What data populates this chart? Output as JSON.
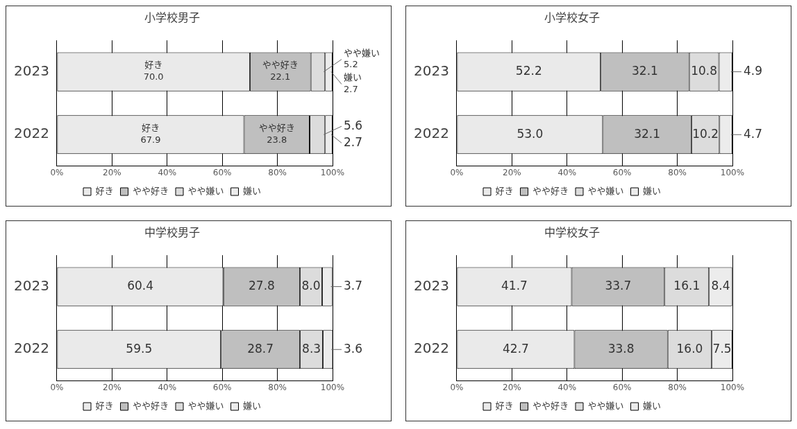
{
  "chart_data": [
    {
      "type": "bar",
      "title": "小学校男子",
      "orientation": "horizontal",
      "stacked": true,
      "categories": [
        "2023",
        "2022"
      ],
      "xlim": [
        0,
        100
      ],
      "xticks": [
        {
          "value": 0,
          "label": "0%"
        },
        {
          "value": 20,
          "label": "20%"
        },
        {
          "value": 40,
          "label": "40%"
        },
        {
          "value": 60,
          "label": "60%"
        },
        {
          "value": 80,
          "label": "80%"
        },
        {
          "value": 100,
          "label": "100%"
        }
      ],
      "grid": "x",
      "legend": "bottom",
      "series": [
        {
          "name": "好き",
          "color": "#eaeaea",
          "values": [
            70.0,
            67.9
          ],
          "value_labels": [
            "好き\n70.0",
            "好き\n67.9"
          ]
        },
        {
          "name": "やや好き",
          "color": "#bfbfbf",
          "values": [
            22.1,
            23.8
          ],
          "value_labels": [
            "やや好き\n22.1",
            "やや好き\n23.8"
          ]
        },
        {
          "name": "やや嫌い",
          "color": "#dcdcdc",
          "values": [
            5.2,
            5.6
          ],
          "value_labels": [
            "やや嫌い\n5.2",
            "5.6"
          ]
        },
        {
          "name": "嫌い",
          "color": "#ececec",
          "values": [
            2.7,
            2.7
          ],
          "value_labels": [
            "嫌い\n2.7",
            "2.7"
          ]
        }
      ]
    },
    {
      "type": "bar",
      "title": "小学校女子",
      "orientation": "horizontal",
      "stacked": true,
      "categories": [
        "2023",
        "2022"
      ],
      "xlim": [
        0,
        100
      ],
      "xticks": [
        {
          "value": 0,
          "label": "0%"
        },
        {
          "value": 20,
          "label": "20%"
        },
        {
          "value": 40,
          "label": "40%"
        },
        {
          "value": 60,
          "label": "60%"
        },
        {
          "value": 80,
          "label": "80%"
        },
        {
          "value": 100,
          "label": "100%"
        }
      ],
      "grid": "x",
      "legend": "bottom",
      "series": [
        {
          "name": "好き",
          "color": "#eaeaea",
          "values": [
            52.2,
            53.0
          ],
          "value_labels": [
            "52.2",
            "53.0"
          ]
        },
        {
          "name": "やや好き",
          "color": "#bfbfbf",
          "values": [
            32.1,
            32.1
          ],
          "value_labels": [
            "32.1",
            "32.1"
          ]
        },
        {
          "name": "やや嫌い",
          "color": "#dcdcdc",
          "values": [
            10.8,
            10.2
          ],
          "value_labels": [
            "10.8",
            "10.2"
          ]
        },
        {
          "name": "嫌い",
          "color": "#ececec",
          "values": [
            4.9,
            4.7
          ],
          "value_labels": [
            "4.9",
            "4.7"
          ]
        }
      ]
    },
    {
      "type": "bar",
      "title": "中学校男子",
      "orientation": "horizontal",
      "stacked": true,
      "categories": [
        "2023",
        "2022"
      ],
      "xlim": [
        0,
        100
      ],
      "xticks": [
        {
          "value": 0,
          "label": "0%"
        },
        {
          "value": 20,
          "label": "20%"
        },
        {
          "value": 40,
          "label": "40%"
        },
        {
          "value": 60,
          "label": "60%"
        },
        {
          "value": 80,
          "label": "80%"
        },
        {
          "value": 100,
          "label": "100%"
        }
      ],
      "grid": "x",
      "legend": "bottom",
      "series": [
        {
          "name": "好き",
          "color": "#eaeaea",
          "values": [
            60.4,
            59.5
          ],
          "value_labels": [
            "60.4",
            "59.5"
          ]
        },
        {
          "name": "やや好き",
          "color": "#bfbfbf",
          "values": [
            27.8,
            28.7
          ],
          "value_labels": [
            "27.8",
            "28.7"
          ]
        },
        {
          "name": "やや嫌い",
          "color": "#dcdcdc",
          "values": [
            8.0,
            8.3
          ],
          "value_labels": [
            "8.0",
            "8.3"
          ]
        },
        {
          "name": "嫌い",
          "color": "#ececec",
          "values": [
            3.7,
            3.6
          ],
          "value_labels": [
            "3.7",
            "3.6"
          ]
        }
      ]
    },
    {
      "type": "bar",
      "title": "中学校女子",
      "orientation": "horizontal",
      "stacked": true,
      "categories": [
        "2023",
        "2022"
      ],
      "xlim": [
        0,
        100
      ],
      "xticks": [
        {
          "value": 0,
          "label": "0%"
        },
        {
          "value": 20,
          "label": "20%"
        },
        {
          "value": 40,
          "label": "40%"
        },
        {
          "value": 60,
          "label": "60%"
        },
        {
          "value": 80,
          "label": "80%"
        },
        {
          "value": 100,
          "label": "100%"
        }
      ],
      "grid": "x",
      "legend": "bottom",
      "series": [
        {
          "name": "好き",
          "color": "#eaeaea",
          "values": [
            41.7,
            42.7
          ],
          "value_labels": [
            "41.7",
            "42.7"
          ]
        },
        {
          "name": "やや好き",
          "color": "#bfbfbf",
          "values": [
            33.7,
            33.8
          ],
          "value_labels": [
            "33.7",
            "33.8"
          ]
        },
        {
          "name": "やや嫌い",
          "color": "#dcdcdc",
          "values": [
            16.1,
            16.0
          ],
          "value_labels": [
            "16.1",
            "16.0"
          ]
        },
        {
          "name": "嫌い",
          "color": "#ececec",
          "values": [
            8.4,
            7.5
          ],
          "value_labels": [
            "8.4",
            "7.5"
          ]
        }
      ]
    }
  ]
}
